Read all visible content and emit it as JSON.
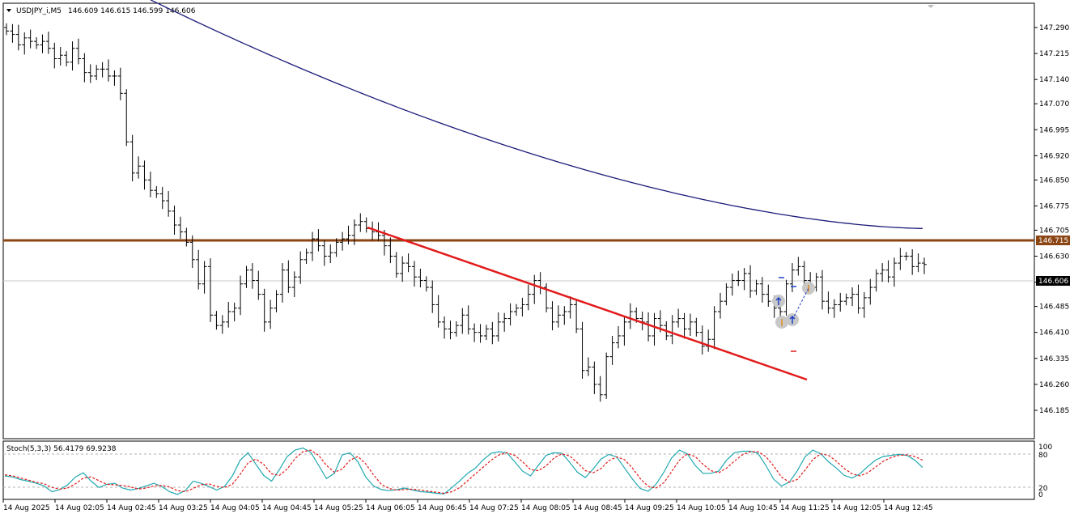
{
  "header": {
    "symbol": "USDJPY_i,M5",
    "ohlc": "146.609 146.615 146.599 146.606"
  },
  "colors": {
    "background": "#ffffff",
    "bars": "#000000",
    "moving_average": "#1b1b7a",
    "horizontal_level": "#8b4513",
    "trendline": "#e31a1a",
    "stoch_main": "#20a8b0",
    "stoch_signal": "#e31a1a"
  },
  "price_axis": {
    "ticks": [
      "147.290",
      "147.215",
      "147.140",
      "147.070",
      "146.995",
      "146.920",
      "146.850",
      "146.775",
      "146.705",
      "146.630",
      "146.555",
      "146.485",
      "146.410",
      "146.335",
      "146.260",
      "146.185"
    ],
    "level_label": "146.715",
    "last_label": "146.606"
  },
  "time_axis": {
    "labels": [
      "14 Aug 2025",
      "14 Aug 02:05",
      "14 Aug 02:45",
      "14 Aug 03:25",
      "14 Aug 04:05",
      "14 Aug 04:45",
      "14 Aug 05:25",
      "14 Aug 06:05",
      "14 Aug 06:45",
      "14 Aug 07:25",
      "14 Aug 08:05",
      "14 Aug 08:45",
      "14 Aug 09:25",
      "14 Aug 10:05",
      "14 Aug 10:45",
      "14 Aug 11:25",
      "14 Aug 12:05",
      "14 Aug 12:45"
    ]
  },
  "stoch": {
    "title": "Stoch(5,3,3) 56.4179 69.9238",
    "levels": [
      "100",
      "80",
      "20",
      "0"
    ]
  },
  "chart_data": [
    {
      "type": "candlestick",
      "title": "USDJPY_i,M5",
      "ylim": [
        146.16,
        147.34
      ],
      "bars_close": [
        147.28,
        147.27,
        147.24,
        147.26,
        147.25,
        147.24,
        147.25,
        147.23,
        147.2,
        147.21,
        147.19,
        147.23,
        147.2,
        147.16,
        147.15,
        147.17,
        147.17,
        147.15,
        147.15,
        147.1,
        146.96,
        146.87,
        146.89,
        146.85,
        146.82,
        146.81,
        146.79,
        146.76,
        146.72,
        146.7,
        146.67,
        146.62,
        146.55,
        146.6,
        146.46,
        146.43,
        146.44,
        146.47,
        146.48,
        146.55,
        146.59,
        146.56,
        146.52,
        146.44,
        146.48,
        146.52,
        146.59,
        146.54,
        146.57,
        146.62,
        146.64,
        146.68,
        146.66,
        146.63,
        146.64,
        146.67,
        146.68,
        146.69,
        146.72,
        146.73,
        146.71,
        146.7,
        146.69,
        146.66,
        146.63,
        146.58,
        146.61,
        146.6,
        146.57,
        146.56,
        146.54,
        146.49,
        146.44,
        146.42,
        146.41,
        146.43,
        146.46,
        146.42,
        146.41,
        146.4,
        146.42,
        146.4,
        146.44,
        146.45,
        146.47,
        146.48,
        146.49,
        146.52,
        146.56,
        146.54,
        146.48,
        146.44,
        146.46,
        146.47,
        146.49,
        146.42,
        146.3,
        146.31,
        146.26,
        146.23,
        146.34,
        146.38,
        146.4,
        146.44,
        146.47,
        146.45,
        146.44,
        146.4,
        146.45,
        146.43,
        146.4,
        146.44,
        146.45,
        146.42,
        146.44,
        146.41,
        146.37,
        146.39,
        146.47,
        146.5,
        146.54,
        146.56,
        146.56,
        146.58,
        146.53,
        146.55,
        146.52,
        146.5,
        146.48,
        146.47,
        146.55,
        146.59,
        146.6,
        146.56,
        146.54,
        146.57,
        146.5,
        146.48,
        146.49,
        146.5,
        146.51,
        146.52,
        146.48,
        146.51,
        146.54,
        146.58,
        146.59,
        146.57,
        146.61,
        146.63,
        146.63,
        146.6,
        146.61,
        146.606
      ]
    },
    {
      "type": "line",
      "title": "Stoch(5,3,3) 56.4179 69.9238",
      "ylim": [
        0,
        100
      ],
      "series": [
        {
          "name": "Main",
          "values": [
            40,
            38,
            33,
            30,
            26,
            21,
            10,
            14,
            23,
            38,
            46,
            30,
            18,
            24,
            26,
            17,
            13,
            16,
            21,
            26,
            20,
            10,
            5,
            12,
            30,
            26,
            20,
            13,
            20,
            40,
            70,
            84,
            62,
            41,
            30,
            52,
            77,
            89,
            93,
            85,
            60,
            35,
            45,
            80,
            84,
            67,
            38,
            21,
            14,
            12,
            14,
            17,
            13,
            10,
            9,
            7,
            6,
            18,
            31,
            45,
            55,
            71,
            83,
            86,
            84,
            67,
            49,
            40,
            60,
            79,
            84,
            83,
            66,
            47,
            37,
            53,
            72,
            81,
            76,
            55,
            34,
            16,
            11,
            24,
            47,
            74,
            89,
            82,
            60,
            45,
            45,
            49,
            70,
            84,
            87,
            87,
            83,
            60,
            34,
            21,
            28,
            49,
            76,
            89,
            82,
            67,
            55,
            41,
            36,
            44,
            58,
            70,
            77,
            79,
            81,
            79,
            70,
            56
          ]
        },
        {
          "name": "Signal",
          "values": [
            42,
            40,
            36,
            32,
            28,
            25,
            18,
            15,
            17,
            25,
            36,
            38,
            31,
            24,
            23,
            22,
            19,
            15,
            17,
            21,
            22,
            19,
            12,
            10,
            16,
            23,
            25,
            20,
            18,
            24,
            43,
            65,
            72,
            62,
            44,
            41,
            53,
            73,
            86,
            89,
            79,
            60,
            47,
            53,
            70,
            77,
            63,
            42,
            24,
            16,
            13,
            14,
            15,
            13,
            11,
            9,
            7,
            10,
            18,
            31,
            44,
            57,
            70,
            80,
            84,
            79,
            67,
            52,
            50,
            59,
            74,
            82,
            78,
            65,
            50,
            46,
            54,
            69,
            76,
            71,
            55,
            35,
            20,
            17,
            27,
            48,
            70,
            82,
            77,
            62,
            50,
            46,
            55,
            68,
            80,
            86,
            86,
            77,
            59,
            38,
            28,
            33,
            51,
            71,
            82,
            79,
            68,
            54,
            44,
            40,
            46,
            57,
            68,
            75,
            79,
            80,
            77,
            70
          ]
        }
      ],
      "levels": [
        20,
        80
      ]
    }
  ]
}
